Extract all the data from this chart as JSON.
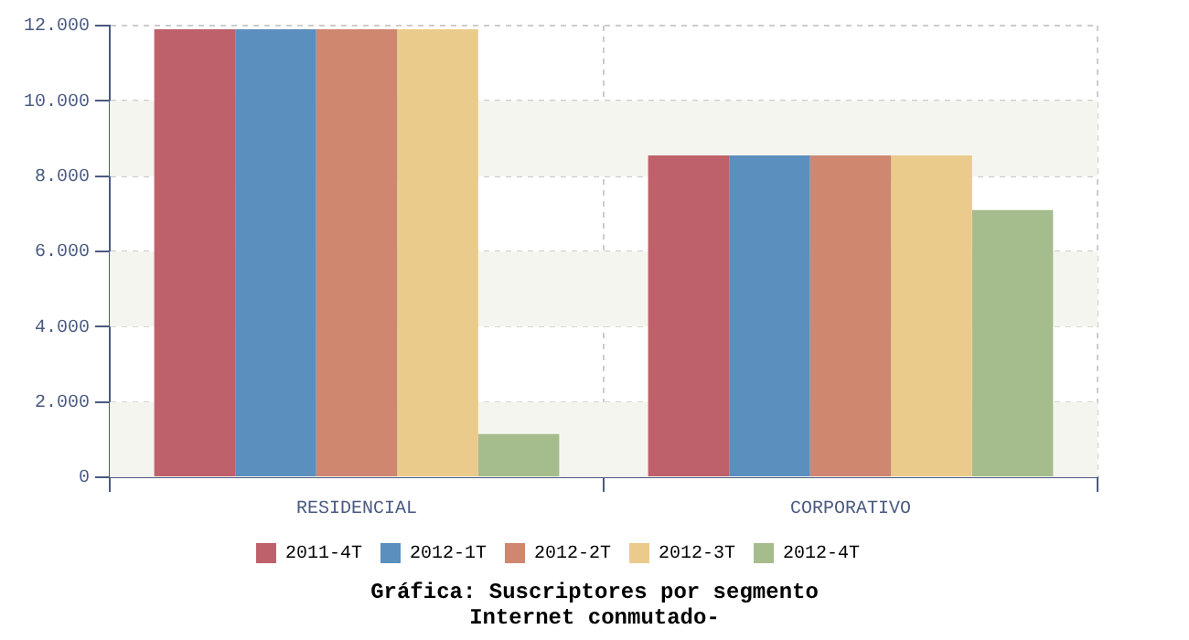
{
  "chart_data": {
    "type": "bar",
    "title": "Gráfica: Suscriptores por segmento",
    "subtitle": "Internet conmutado-",
    "categories": [
      "RESIDENCIAL",
      "CORPORATIVO"
    ],
    "series": [
      {
        "name": "2011-4T",
        "color": "#bf616b",
        "values": [
          11900,
          8550
        ]
      },
      {
        "name": "2012-1T",
        "color": "#5b8fbe",
        "values": [
          11900,
          8550
        ]
      },
      {
        "name": "2012-2T",
        "color": "#cf8770",
        "values": [
          11900,
          8550
        ]
      },
      {
        "name": "2012-3T",
        "color": "#eacb8c",
        "values": [
          11900,
          8550
        ]
      },
      {
        "name": "2012-4T",
        "color": "#a5bc8d",
        "values": [
          1150,
          7100
        ]
      }
    ],
    "ylim": [
      0,
      12000
    ],
    "yticks": [
      {
        "value": 0,
        "label": "0"
      },
      {
        "value": 2000,
        "label": "2.000"
      },
      {
        "value": 4000,
        "label": "4.000"
      },
      {
        "value": 6000,
        "label": "6.000"
      },
      {
        "value": 8000,
        "label": "8.000"
      },
      {
        "value": 10000,
        "label": "10.000"
      },
      {
        "value": 12000,
        "label": "12.000"
      }
    ],
    "grid": true,
    "legend": "bottom"
  }
}
